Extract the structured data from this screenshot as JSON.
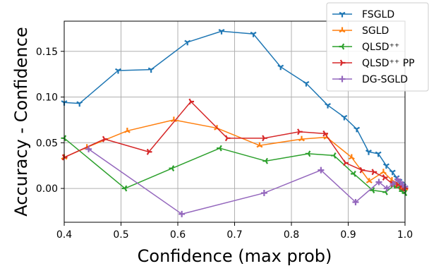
{
  "chart_data": {
    "type": "line",
    "title": "",
    "xlabel": "Confidence (max prob)",
    "ylabel": "Accuracy - Confidence",
    "xlim": [
      0.4,
      1.0
    ],
    "ylim": [
      -0.037,
      0.183
    ],
    "x_ticks": [
      0.4,
      0.5,
      0.6,
      0.7,
      0.8,
      0.9,
      1.0
    ],
    "x_tick_labels": [
      "0.4",
      "0.5",
      "0.6",
      "0.7",
      "0.8",
      "0.9",
      "1.0"
    ],
    "y_ticks": [
      0.0,
      0.05,
      0.1,
      0.15
    ],
    "y_tick_labels": [
      "0.00",
      "0.05",
      "0.10",
      "0.15"
    ],
    "grid": true,
    "legend_position": "top-right",
    "series": [
      {
        "name": "FSGLD",
        "color": "#1f77b4",
        "marker": "tri_down",
        "x": [
          0.4,
          0.427,
          0.495,
          0.553,
          0.617,
          0.677,
          0.733,
          0.781,
          0.826,
          0.864,
          0.893,
          0.915,
          0.936,
          0.953,
          0.967,
          0.978,
          0.985,
          0.99,
          0.994,
          0.997,
          1.0
        ],
        "y": [
          0.094,
          0.093,
          0.129,
          0.13,
          0.16,
          0.172,
          0.169,
          0.133,
          0.115,
          0.091,
          0.078,
          0.065,
          0.04,
          0.038,
          0.025,
          0.018,
          0.012,
          0.008,
          0.005,
          0.003,
          0.001
        ]
      },
      {
        "name": "SGLD",
        "color": "#ff7f0e",
        "marker": "tri_up",
        "x": [
          0.4,
          0.44,
          0.511,
          0.593,
          0.669,
          0.744,
          0.818,
          0.862,
          0.906,
          0.937,
          0.962,
          0.977,
          0.987,
          0.993,
          0.997,
          1.0
        ],
        "y": [
          0.034,
          0.045,
          0.063,
          0.075,
          0.066,
          0.047,
          0.054,
          0.056,
          0.034,
          0.008,
          0.018,
          0.009,
          0.004,
          0.003,
          0.001,
          0.0
        ]
      },
      {
        "name": "QLSD⁺⁺",
        "color": "#2ca02c",
        "marker": "tri_left",
        "x": [
          0.4,
          0.507,
          0.59,
          0.674,
          0.755,
          0.83,
          0.875,
          0.91,
          0.943,
          0.966,
          0.98,
          0.989,
          0.995,
          1.0
        ],
        "y": [
          0.055,
          0.0,
          0.022,
          0.044,
          0.03,
          0.038,
          0.036,
          0.016,
          -0.002,
          -0.004,
          0.003,
          0.001,
          -0.003,
          -0.005
        ]
      },
      {
        "name": "QLSD⁺⁺ PP",
        "color": "#d62728",
        "marker": "tri_right",
        "x": [
          0.4,
          0.471,
          0.549,
          0.623,
          0.687,
          0.752,
          0.814,
          0.859,
          0.895,
          0.924,
          0.945,
          0.964,
          0.978,
          0.987,
          0.993,
          0.997,
          1.0
        ],
        "y": [
          0.034,
          0.054,
          0.04,
          0.095,
          0.055,
          0.055,
          0.062,
          0.06,
          0.028,
          0.02,
          0.018,
          0.012,
          0.005,
          0.004,
          0.002,
          0.001,
          0.0
        ]
      },
      {
        "name": "DG-SGLD",
        "color": "#9467bd",
        "marker": "plus",
        "x": [
          0.443,
          0.607,
          0.752,
          0.852,
          0.913,
          0.954,
          0.968,
          0.979,
          0.987,
          0.992,
          0.996,
          1.0
        ],
        "y": [
          0.043,
          -0.028,
          -0.005,
          0.02,
          -0.015,
          0.007,
          0.0,
          0.005,
          0.01,
          0.007,
          0.004,
          0.002
        ]
      }
    ]
  }
}
